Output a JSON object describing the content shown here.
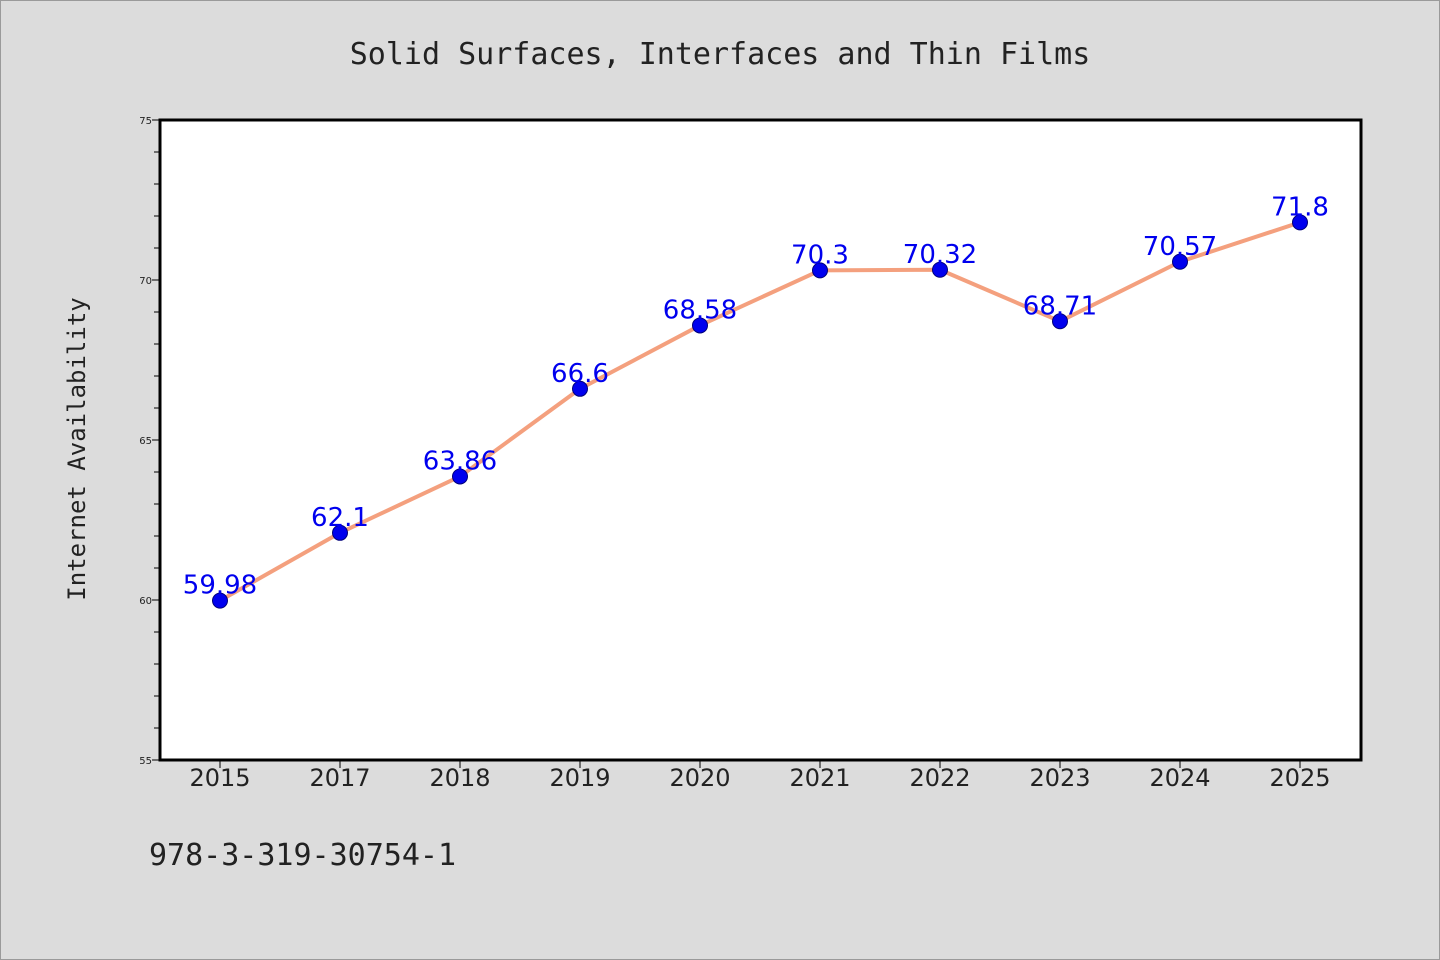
{
  "chart_data": {
    "type": "line",
    "title": "Solid Surfaces, Interfaces and Thin Films",
    "xlabel": "",
    "ylabel": "Internet Availability",
    "categories": [
      "2015",
      "2017",
      "2018",
      "2019",
      "2020",
      "2021",
      "2022",
      "2023",
      "2024",
      "2025"
    ],
    "values": [
      59.98,
      62.1,
      63.86,
      66.6,
      68.58,
      70.3,
      70.32,
      68.71,
      70.57,
      71.8
    ],
    "data_labels": [
      "59.98",
      "62.1",
      "63.86",
      "66.6",
      "68.58",
      "70.3",
      "70.32",
      "68.71",
      "70.57",
      "71.8"
    ],
    "ylim": [
      55,
      75
    ],
    "yticks": [
      "55",
      "60",
      "65",
      "70",
      "75"
    ],
    "grid": false,
    "legend": "none",
    "colors": {
      "line": "#f4a07e",
      "marker": "#0000ee",
      "label": "#0000ee",
      "background": "#dcdcdc",
      "plot_area": "#ffffff"
    }
  },
  "footer": {
    "isbn": "978-3-319-30754-1"
  }
}
